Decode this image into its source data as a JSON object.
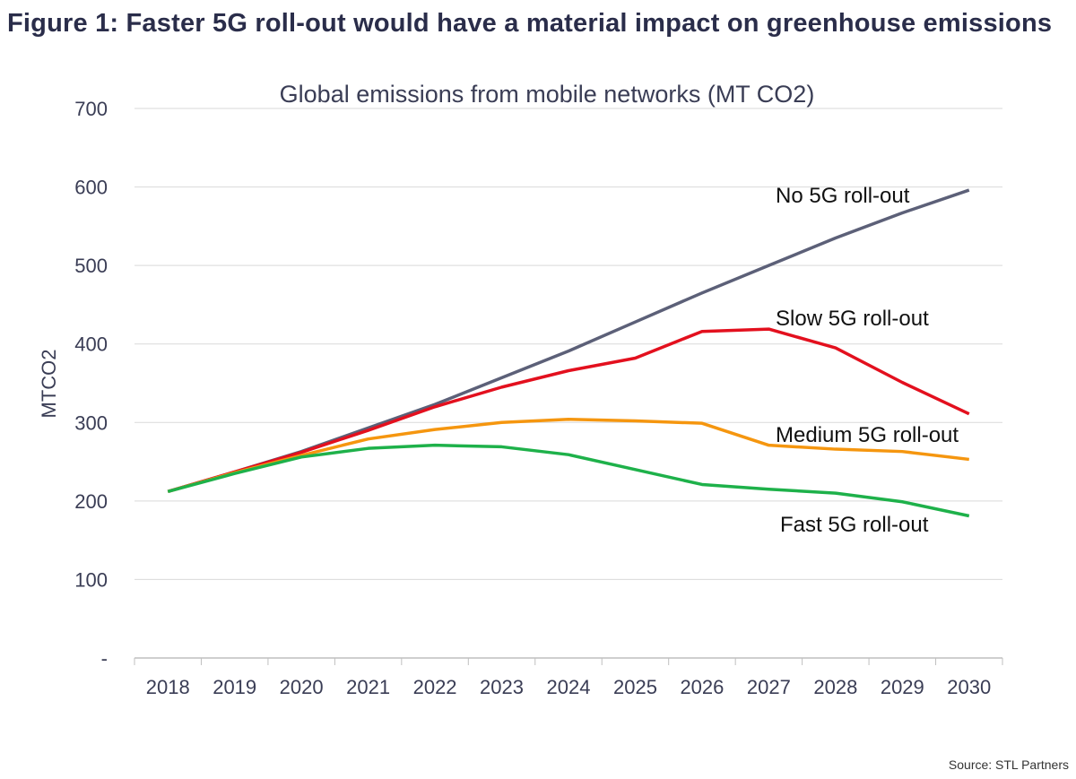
{
  "figure_title": "Figure 1: Faster 5G roll-out would have a material impact on greenhouse emissions",
  "source": "Source: STL Partners",
  "chart_data": {
    "type": "line",
    "title": "Global emissions from mobile networks (MT CO2)",
    "xlabel": "",
    "ylabel": "MTCO2",
    "ylim": [
      0,
      700
    ],
    "yticks": [
      0,
      100,
      200,
      300,
      400,
      500,
      600,
      700
    ],
    "ytick_labels": [
      "-",
      "100",
      "200",
      "300",
      "400",
      "500",
      "600",
      "700"
    ],
    "grid": "horizontal",
    "categories": [
      "2018",
      "2019",
      "2020",
      "2021",
      "2022",
      "2023",
      "2024",
      "2025",
      "2026",
      "2027",
      "2028",
      "2029",
      "2030"
    ],
    "series": [
      {
        "name": "No 5G roll-out",
        "color": "#5c6078",
        "values": [
          212,
          237,
          263,
          293,
          323,
          357,
          391,
          428,
          465,
          500,
          535,
          567,
          596
        ]
      },
      {
        "name": "Slow 5G roll-out",
        "color": "#e3101e",
        "values": [
          212,
          237,
          262,
          290,
          320,
          345,
          366,
          382,
          416,
          419,
          395,
          351,
          311
        ]
      },
      {
        "name": "Medium 5G roll-out",
        "color": "#f5960f",
        "values": [
          212,
          236,
          258,
          279,
          291,
          300,
          304,
          302,
          299,
          271,
          266,
          263,
          253
        ]
      },
      {
        "name": "Fast 5G roll-out",
        "color": "#1eb14a",
        "values": [
          212,
          235,
          256,
          267,
          271,
          269,
          259,
          240,
          221,
          215,
          210,
          199,
          181
        ]
      }
    ]
  }
}
